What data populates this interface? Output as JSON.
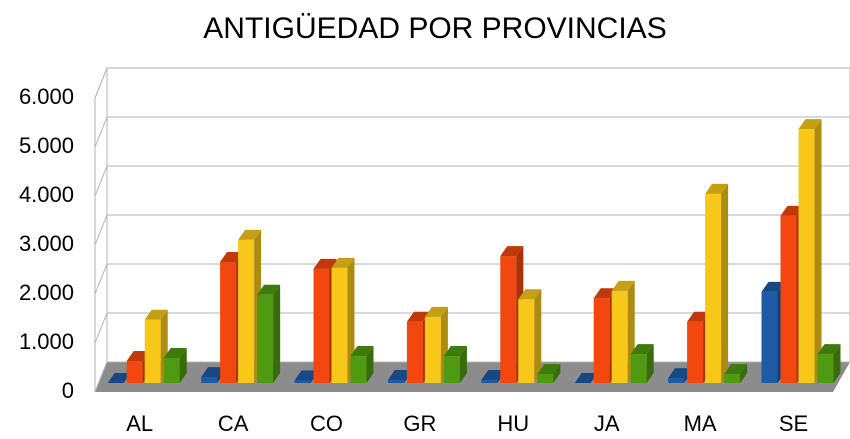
{
  "chart_data": {
    "type": "bar3d",
    "title": "ANTIGÜEDAD POR PROVINCIAS",
    "categories": [
      "AL",
      "CA",
      "CO",
      "GR",
      "HU",
      "JA",
      "MA",
      "SE"
    ],
    "series": [
      {
        "color": "#1f5aa6",
        "values": [
          0,
          120,
          50,
          60,
          60,
          0,
          100,
          1860
        ]
      },
      {
        "color": "#f2470f",
        "values": [
          450,
          2470,
          2330,
          1250,
          2590,
          1730,
          1250,
          3410
        ]
      },
      {
        "color": "#f7c81a",
        "values": [
          1290,
          2920,
          2350,
          1350,
          1710,
          1880,
          3860,
          5180
        ]
      },
      {
        "color": "#4f9a10",
        "values": [
          510,
          1800,
          550,
          550,
          180,
          590,
          180,
          590
        ]
      }
    ],
    "ylim": [
      0,
      6000
    ],
    "yticks": [
      0,
      {
        "value": 1000,
        "label": "1.000"
      },
      {
        "value": 2000,
        "label": "2.000"
      },
      {
        "value": 3000,
        "label": "3.000"
      },
      {
        "value": 4000,
        "label": "4.000"
      },
      {
        "value": 5000,
        "label": "5.000"
      },
      {
        "value": 6000,
        "label": "6.000"
      }
    ],
    "grid": true
  }
}
